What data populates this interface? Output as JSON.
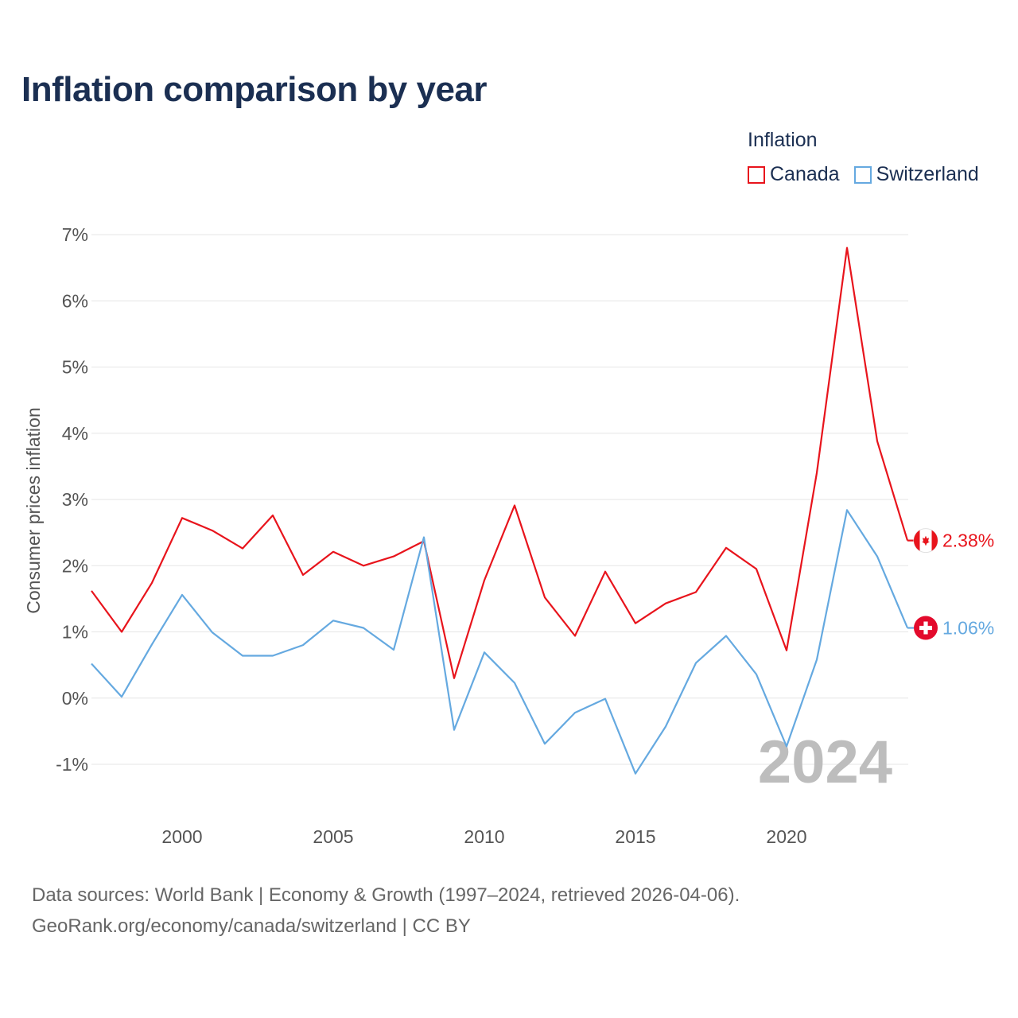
{
  "title": "Inflation comparison by year",
  "legend": {
    "title": "Inflation",
    "items": [
      {
        "label": "Canada",
        "color": "#e8141c"
      },
      {
        "label": "Switzerland",
        "color": "#65a9e0"
      }
    ]
  },
  "year_watermark": "2024",
  "source": {
    "line1": "Data sources: World Bank | Economy & Growth (1997–2024, retrieved 2026-04-06).",
    "line2": "GeoRank.org/economy/canada/switzerland | CC BY"
  },
  "chart_data": {
    "type": "line",
    "title": "Inflation comparison by year",
    "ylabel": "Consumer prices inflation",
    "xlabel": "",
    "xlim": [
      1997,
      2024
    ],
    "ylim": [
      -1,
      7
    ],
    "x_ticks": [
      2000,
      2005,
      2010,
      2015,
      2020
    ],
    "y_ticks": [
      -1,
      0,
      1,
      2,
      3,
      4,
      5,
      6,
      7
    ],
    "y_tick_labels": [
      "-1%",
      "0%",
      "1%",
      "2%",
      "3%",
      "4%",
      "5%",
      "6%",
      "7%"
    ],
    "x": [
      1997,
      1998,
      1999,
      2000,
      2001,
      2002,
      2003,
      2004,
      2005,
      2006,
      2007,
      2008,
      2009,
      2010,
      2011,
      2012,
      2013,
      2014,
      2015,
      2016,
      2017,
      2018,
      2019,
      2020,
      2021,
      2022,
      2023,
      2024
    ],
    "series": [
      {
        "name": "Canada",
        "color": "#e8141c",
        "end_label": "2.38%",
        "values": [
          1.62,
          1.0,
          1.74,
          2.72,
          2.53,
          2.26,
          2.76,
          1.86,
          2.21,
          2.0,
          2.14,
          2.37,
          0.3,
          1.78,
          2.91,
          1.52,
          0.94,
          1.91,
          1.13,
          1.43,
          1.6,
          2.27,
          1.95,
          0.72,
          3.4,
          6.8,
          3.88,
          2.38
        ]
      },
      {
        "name": "Switzerland",
        "color": "#65a9e0",
        "end_label": "1.06%",
        "values": [
          0.52,
          0.02,
          0.81,
          1.56,
          0.99,
          0.64,
          0.64,
          0.8,
          1.17,
          1.06,
          0.73,
          2.43,
          -0.48,
          0.69,
          0.23,
          -0.69,
          -0.22,
          -0.01,
          -1.14,
          -0.43,
          0.53,
          0.94,
          0.36,
          -0.73,
          0.58,
          2.84,
          2.14,
          1.06
        ]
      }
    ]
  }
}
